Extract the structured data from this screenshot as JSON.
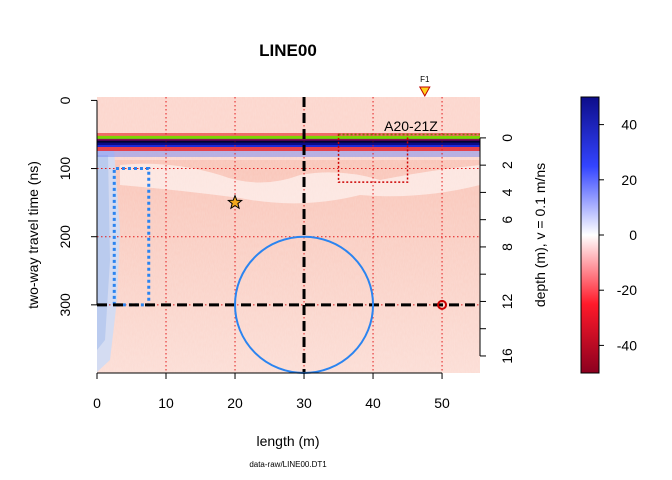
{
  "chart_data": {
    "type": "heatmap",
    "title": "LINE00",
    "xlabel": "length (m)",
    "ylabel": "two-way travel time (ns)",
    "y2label": "depth (m),  v = 0.1 m/ns",
    "footer": "data-raw/LINE00.DT1",
    "xlim": [
      0,
      55.5
    ],
    "ylim": [
      400,
      -5
    ],
    "x_ticks": [
      "0",
      "10",
      "20",
      "30",
      "40",
      "50"
    ],
    "x_tick_values": [
      0,
      10,
      20,
      30,
      40,
      50
    ],
    "y_ticks": [
      "0",
      "100",
      "200",
      "300"
    ],
    "y_tick_values": [
      0,
      100,
      200,
      300
    ],
    "depth_ticks": [
      "0",
      "2",
      "4",
      "6",
      "8",
      "12",
      "16"
    ],
    "depth_tick_values": [
      0,
      2,
      4,
      6,
      8,
      12,
      16
    ],
    "depth_minor_tick_values": [
      10,
      14
    ],
    "grid_x": [
      10,
      20,
      30,
      40,
      50
    ],
    "grid_y": [
      100,
      200,
      300
    ],
    "surface_time_ns": 55,
    "colorbar": {
      "ticks": [
        "40",
        "20",
        "0",
        "-20",
        "-40"
      ],
      "tick_values": [
        40,
        20,
        0,
        -20,
        -40
      ],
      "range": [
        -50,
        50
      ],
      "colors": [
        "#8b001f",
        "#ff1a2a",
        "#ffffff",
        "#3344ff",
        "#0d0d8a"
      ]
    },
    "annotations": {
      "label": "A20-21Z",
      "label_x": 45.5,
      "label_t": 45,
      "marker_label": "F1",
      "marker_x": 47.5,
      "star": [
        20,
        150
      ],
      "point": [
        50,
        300
      ],
      "circle": {
        "center": [
          30,
          300
        ],
        "radius_x": 10,
        "radius_t": 100
      },
      "crosshair": [
        30,
        300
      ],
      "red_box": {
        "x": [
          35,
          45
        ],
        "t": [
          50,
          120
        ]
      },
      "blue_box": {
        "x": [
          2.5,
          7.5
        ],
        "t": [
          100,
          300
        ]
      }
    },
    "colors": {
      "green_line": "#7cd400",
      "blue_annotation": "#2b84f0",
      "red_annotation": "#cc0000",
      "marker_fill": "#ffd11a"
    }
  }
}
